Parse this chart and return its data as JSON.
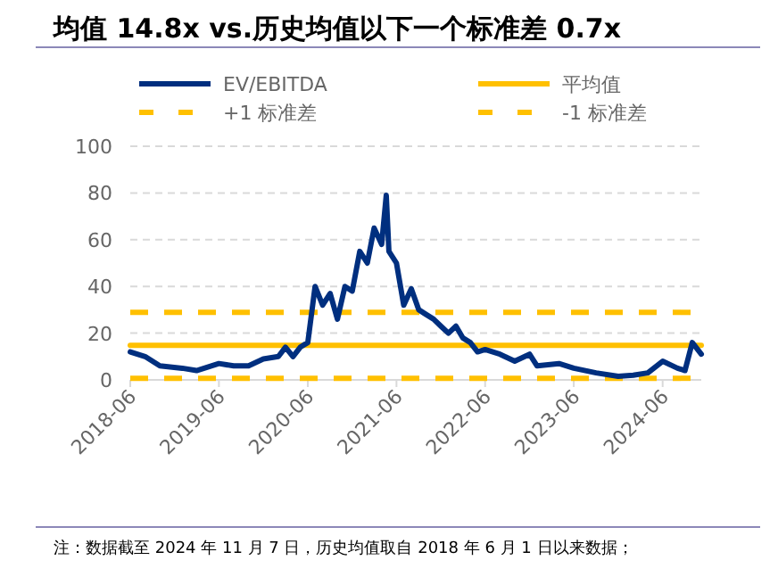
{
  "chart_data": {
    "type": "line",
    "title": "均值 14.8x vs.历史均值以下一个标准差 0.7x",
    "legend": "top",
    "grid": "y",
    "marker": "none",
    "xlim": [
      "2018-06-01",
      "2024-11-07"
    ],
    "xticks": [
      "2018-06",
      "2019-06",
      "2020-06",
      "2021-06",
      "2022-06",
      "2023-06",
      "2024-06"
    ],
    "ylim": [
      0,
      100
    ],
    "yticks": [
      0,
      20,
      40,
      60,
      80,
      100
    ],
    "series": [
      {
        "name": "EV/EBITDA",
        "color": "#002f7f",
        "line_style": "solid",
        "x": [
          "2018-06-01",
          "2018-08-01",
          "2018-10-01",
          "2019-01-01",
          "2019-03-01",
          "2019-06-01",
          "2019-08-01",
          "2019-10-01",
          "2019-12-01",
          "2020-02-01",
          "2020-03-01",
          "2020-04-01",
          "2020-05-01",
          "2020-06-01",
          "2020-07-01",
          "2020-08-01",
          "2020-09-01",
          "2020-10-01",
          "2020-11-01",
          "2020-12-01",
          "2021-01-01",
          "2021-02-01",
          "2021-03-01",
          "2021-04-01",
          "2021-04-20",
          "2021-05-01",
          "2021-06-01",
          "2021-07-01",
          "2021-08-01",
          "2021-09-01",
          "2021-10-01",
          "2021-11-01",
          "2021-12-01",
          "2022-01-01",
          "2022-02-01",
          "2022-03-01",
          "2022-04-01",
          "2022-05-01",
          "2022-06-01",
          "2022-08-01",
          "2022-10-01",
          "2022-12-01",
          "2023-01-01",
          "2023-04-01",
          "2023-06-01",
          "2023-09-01",
          "2023-12-01",
          "2024-02-01",
          "2024-04-01",
          "2024-06-01",
          "2024-08-01",
          "2024-09-01",
          "2024-10-01",
          "2024-11-07"
        ],
        "values": [
          12,
          10,
          6,
          5,
          4,
          7,
          6,
          6,
          9,
          10,
          14,
          10,
          14,
          16,
          40,
          32,
          37,
          26,
          40,
          38,
          55,
          50,
          65,
          58,
          79,
          55,
          50,
          32,
          39,
          30,
          28,
          26,
          23,
          20,
          23,
          18,
          16,
          12,
          13,
          11,
          8,
          11,
          6,
          7,
          5,
          3,
          1.5,
          2,
          3,
          8,
          5,
          4,
          16,
          11
        ]
      },
      {
        "name": "平均值",
        "color": "#ffc000",
        "line_style": "solid",
        "x": [
          "2018-06-01",
          "2024-11-07"
        ],
        "values": [
          14.8,
          14.8
        ]
      },
      {
        "name": "+1 标准差",
        "color": "#ffc000",
        "line_style": "dashed",
        "x": [
          "2018-06-01",
          "2024-11-07"
        ],
        "values": [
          28.9,
          28.9
        ]
      },
      {
        "name": "-1 标准差",
        "color": "#ffc000",
        "line_style": "dashed",
        "x": [
          "2018-06-01",
          "2024-11-07"
        ],
        "values": [
          0.7,
          0.7
        ]
      }
    ],
    "annotations": [
      "注：数据截至 2024 年 11 月 7 日，历史均值取自 2018 年 6 月 1 日以来数据；"
    ]
  }
}
